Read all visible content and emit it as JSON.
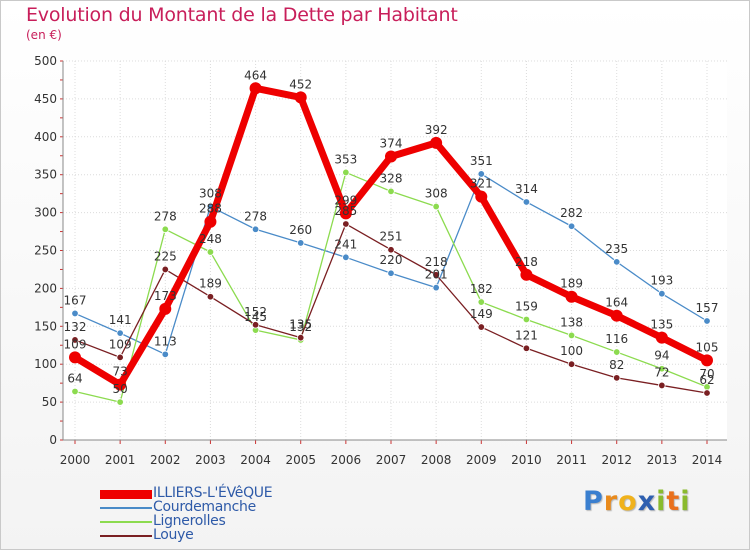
{
  "header": {
    "title": "Evolution du Montant de la Dette par Habitant",
    "subtitle": "(en €)"
  },
  "logo": {
    "text": "Proxiti",
    "letter_colors": [
      "#3a7fcf",
      "#e98a1b",
      "#f0b21c",
      "#2e5fb0",
      "#89bb2e",
      "#e9701c",
      "#8aba2e"
    ]
  },
  "chart_data": {
    "type": "line",
    "title": "Evolution du Montant de la Dette par Habitant",
    "subtitle": "(en €)",
    "xlabel": "",
    "ylabel": "",
    "x": [
      "2000",
      "2001",
      "2002",
      "2003",
      "2004",
      "2005",
      "2006",
      "2007",
      "2008",
      "2009",
      "2010",
      "2011",
      "2012",
      "2013",
      "2014"
    ],
    "ylim": [
      0,
      500
    ],
    "yticks": [
      0,
      50,
      100,
      150,
      200,
      250,
      300,
      350,
      400,
      450,
      500
    ],
    "grid": true,
    "legend_position": "bottom-left",
    "series": [
      {
        "name": "ILLIERS-L'ÉVêQUE",
        "color": "#ee0000",
        "emphasis": true,
        "values": [
          109,
          73,
          173,
          288,
          464,
          452,
          299,
          374,
          392,
          321,
          218,
          189,
          164,
          135,
          105
        ]
      },
      {
        "name": "Courdemanche",
        "color": "#4a8bc8",
        "values": [
          167,
          141,
          113,
          308,
          278,
          260,
          241,
          220,
          201,
          351,
          314,
          282,
          235,
          193,
          157
        ]
      },
      {
        "name": "Lignerolles",
        "color": "#8cdb4f",
        "values": [
          64,
          50,
          278,
          248,
          145,
          132,
          353,
          328,
          308,
          182,
          159,
          138,
          116,
          94,
          70
        ]
      },
      {
        "name": "Louye",
        "color": "#7a1f22",
        "values": [
          132,
          109,
          225,
          189,
          152,
          135,
          285,
          251,
          218,
          149,
          121,
          100,
          82,
          72,
          62
        ]
      }
    ]
  }
}
